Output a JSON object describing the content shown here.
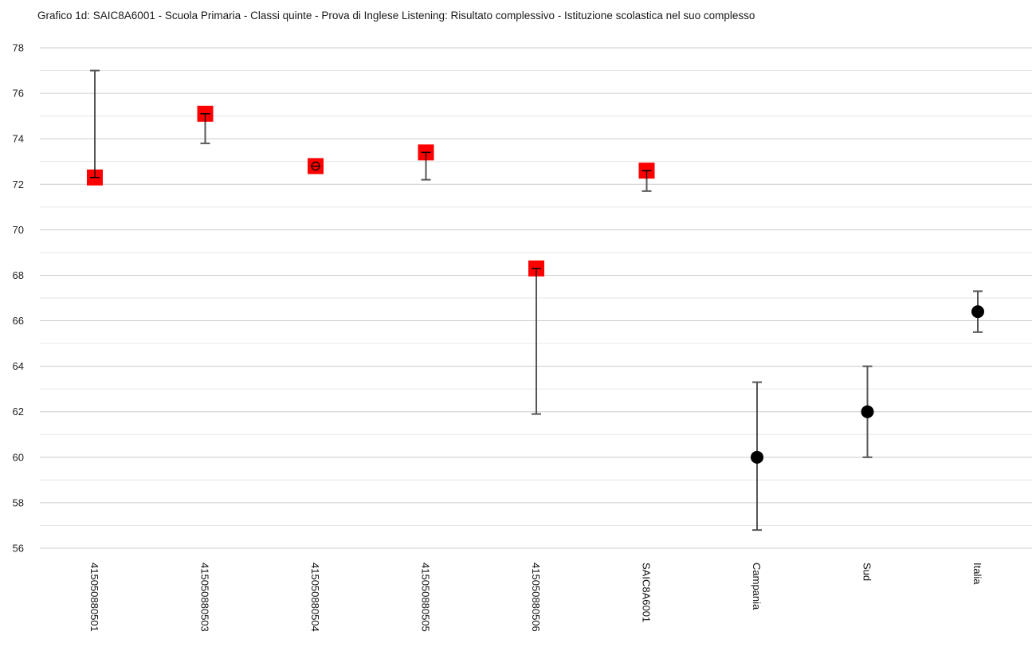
{
  "chart_data": {
    "type": "scatter",
    "title": "Grafico 1d: SAIC8A6001 - Scuola Primaria - Classi quinte - Prova di Inglese Listening: Risultato complessivo - Istituzione scolastica nel suo complesso",
    "xlabel": "",
    "ylabel": "",
    "ylim": [
      56,
      78
    ],
    "yticks": [
      56,
      58,
      60,
      62,
      64,
      66,
      68,
      70,
      72,
      74,
      76,
      78
    ],
    "grid": true,
    "categories": [
      "415050880501",
      "415050880503",
      "415050880504",
      "415050880505",
      "415050880506",
      "SAIC8A6001",
      "Campania",
      "Sud",
      "Italia"
    ],
    "points": [
      {
        "value": 72.3,
        "err_low": 72.3,
        "err_high": 77.0,
        "marker": "square",
        "color": "#ff0000"
      },
      {
        "value": 75.1,
        "err_low": 73.8,
        "err_high": 75.1,
        "marker": "square",
        "color": "#ff0000"
      },
      {
        "value": 72.8,
        "err_low": 72.8,
        "err_high": 72.8,
        "marker": "square",
        "color": "#ff0000"
      },
      {
        "value": 73.4,
        "err_low": 72.2,
        "err_high": 73.4,
        "marker": "square",
        "color": "#ff0000"
      },
      {
        "value": 68.3,
        "err_low": 61.9,
        "err_high": 68.3,
        "marker": "square",
        "color": "#ff0000"
      },
      {
        "value": 72.6,
        "err_low": 71.7,
        "err_high": 72.6,
        "marker": "square",
        "color": "#ff0000"
      },
      {
        "value": 60.0,
        "err_low": 56.8,
        "err_high": 63.3,
        "marker": "circle",
        "color": "#000000"
      },
      {
        "value": 62.0,
        "err_low": 60.0,
        "err_high": 64.0,
        "marker": "circle",
        "color": "#000000"
      },
      {
        "value": 66.4,
        "err_low": 65.5,
        "err_high": 67.3,
        "marker": "circle",
        "color": "#000000"
      }
    ]
  },
  "colors": {
    "grid_major": "#cccccc",
    "grid_minor": "#e6e6e6",
    "error_bar": "#555555",
    "school_marker": "#ff0000",
    "reference_marker": "#000000"
  }
}
